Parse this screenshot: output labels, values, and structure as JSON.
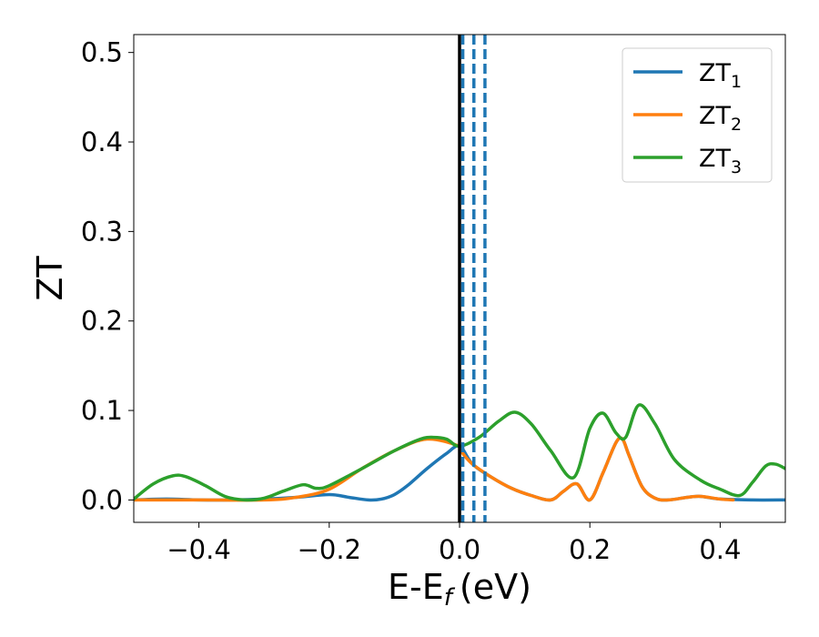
{
  "chart_data": {
    "type": "line",
    "xlabel": "E-E",
    "xlabel_sub": "f",
    "xlabel_unit": "(eV)",
    "ylabel": "ZT",
    "xlim": [
      -0.5,
      0.5
    ],
    "ylim": [
      -0.025,
      0.52
    ],
    "xticks": [
      -0.4,
      -0.2,
      0.0,
      0.2,
      0.4
    ],
    "xtick_labels": [
      "−0.4",
      "−0.2",
      "0.0",
      "0.2",
      "0.4"
    ],
    "yticks": [
      0.0,
      0.1,
      0.2,
      0.3,
      0.4,
      0.5
    ],
    "ytick_labels": [
      "0.0",
      "0.1",
      "0.2",
      "0.3",
      "0.4",
      "0.5"
    ],
    "grid": false,
    "legend_position": "top-right",
    "series": [
      {
        "name": "ZT",
        "sub": "1",
        "color": "#1f77b4",
        "x": [
          -0.5,
          -0.45,
          -0.4,
          -0.35,
          -0.3,
          -0.25,
          -0.2,
          -0.17,
          -0.14,
          -0.12,
          -0.1,
          -0.08,
          -0.05,
          -0.02,
          0.0,
          0.02,
          0.05,
          0.08,
          0.11,
          0.14,
          0.16,
          0.18,
          0.2,
          0.22,
          0.24,
          0.25,
          0.26,
          0.28,
          0.3,
          0.32,
          0.35,
          0.37,
          0.4,
          0.45,
          0.5
        ],
        "y": [
          0.0,
          0.001,
          0.0,
          0.0,
          0.001,
          0.003,
          0.006,
          0.003,
          0.0,
          0.001,
          0.006,
          0.016,
          0.035,
          0.052,
          0.06,
          0.04,
          0.025,
          0.013,
          0.005,
          0.0,
          0.01,
          0.018,
          0.0,
          0.03,
          0.064,
          0.068,
          0.05,
          0.015,
          0.002,
          0.0,
          0.003,
          0.004,
          0.001,
          0.0,
          0.0
        ]
      },
      {
        "name": "ZT",
        "sub": "2",
        "color": "#ff7f0e",
        "x": [
          -0.5,
          -0.4,
          -0.3,
          -0.25,
          -0.2,
          -0.15,
          -0.1,
          -0.05,
          0.0,
          0.005,
          0.02,
          0.05,
          0.08,
          0.11,
          0.14,
          0.16,
          0.18,
          0.2,
          0.22,
          0.24,
          0.25,
          0.26,
          0.28,
          0.3,
          0.32,
          0.35,
          0.37,
          0.4,
          0.42
        ],
        "y": [
          0.0,
          0.0,
          0.0,
          0.003,
          0.012,
          0.035,
          0.055,
          0.068,
          0.06,
          0.052,
          0.04,
          0.025,
          0.013,
          0.005,
          0.0,
          0.01,
          0.018,
          0.0,
          0.03,
          0.064,
          0.068,
          0.05,
          0.015,
          0.002,
          0.0,
          0.003,
          0.004,
          0.001,
          0.0
        ]
      },
      {
        "name": "ZT",
        "sub": "3",
        "color": "#2ca02c",
        "x": [
          -0.5,
          -0.47,
          -0.44,
          -0.42,
          -0.39,
          -0.36,
          -0.33,
          -0.3,
          -0.27,
          -0.24,
          -0.22,
          -0.2,
          -0.15,
          -0.1,
          -0.06,
          -0.04,
          -0.02,
          0.0,
          0.03,
          0.06,
          0.085,
          0.11,
          0.14,
          0.175,
          0.2,
          0.22,
          0.24,
          0.255,
          0.275,
          0.3,
          0.33,
          0.37,
          0.4,
          0.43,
          0.45,
          0.47,
          0.485,
          0.5
        ],
        "y": [
          0.001,
          0.018,
          0.027,
          0.026,
          0.016,
          0.004,
          0.0,
          0.002,
          0.01,
          0.017,
          0.013,
          0.016,
          0.035,
          0.055,
          0.068,
          0.07,
          0.068,
          0.06,
          0.07,
          0.088,
          0.098,
          0.085,
          0.055,
          0.025,
          0.08,
          0.097,
          0.075,
          0.07,
          0.106,
          0.085,
          0.045,
          0.022,
          0.012,
          0.005,
          0.02,
          0.038,
          0.04,
          0.035
        ]
      }
    ],
    "vlines": [
      {
        "x": 0.0,
        "color": "#000000",
        "style": "solid"
      },
      {
        "x": 0.005,
        "color": "#1f77b4",
        "style": "dashed"
      },
      {
        "x": 0.022,
        "color": "#1f77b4",
        "style": "dashed"
      },
      {
        "x": 0.039,
        "color": "#1f77b4",
        "style": "dashed"
      }
    ]
  }
}
